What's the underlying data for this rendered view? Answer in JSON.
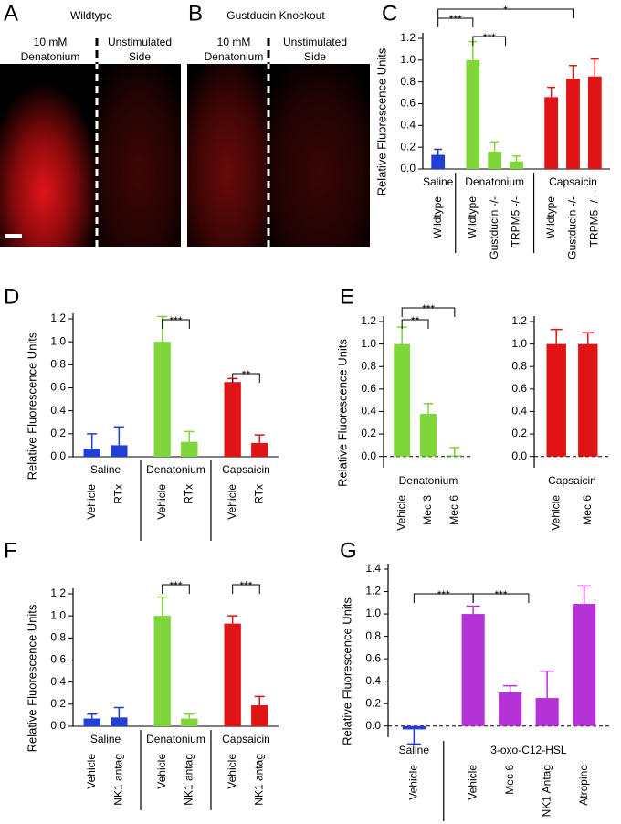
{
  "images": [
    {
      "panel": "A",
      "title": "Wildtype",
      "left_label": [
        "10 mM",
        "Denatonium"
      ],
      "right_label": [
        "Unstimulated",
        "Side"
      ]
    },
    {
      "panel": "B",
      "title": "Gustducin Knockout",
      "left_label": [
        "10 mM",
        "Denatonium"
      ],
      "right_label": [
        "Unstimulated",
        "Side"
      ]
    }
  ],
  "chart_data": [
    {
      "type": "bar",
      "panel": "C",
      "y_label": "Relative Fluorescence Units",
      "ylim": [
        0,
        1.2
      ],
      "yticks": [
        {
          "value": 0,
          "label": "0.0"
        },
        0.2,
        0.4,
        0.6,
        0.8,
        {
          "value": 1,
          "label": "1.0"
        },
        1.2
      ],
      "groups": [
        {
          "label": "Saline",
          "color": "#1f3fd6",
          "categories": [
            "Wildtype"
          ],
          "values": [
            0.13
          ],
          "errors": [
            0.05
          ]
        },
        {
          "label": "Denatonium",
          "color": "#7fd63a",
          "categories": [
            "Wildtype",
            "Gustducin -/-",
            "TRPM5 -/-"
          ],
          "values": [
            1.0,
            0.16,
            0.07
          ],
          "errors": [
            0.17,
            0.09,
            0.05
          ]
        },
        {
          "label": "Capsaicin",
          "color": "#e01414",
          "categories": [
            "Wildtype",
            "Gustducin -/-",
            "TRPM5 -/-"
          ],
          "values": [
            0.66,
            0.83,
            0.85
          ],
          "errors": [
            0.09,
            0.12,
            0.16
          ]
        }
      ],
      "annotations": [
        "***",
        "***",
        "*"
      ]
    },
    {
      "type": "bar",
      "panel": "D",
      "y_label": "Relative Fluorescence Units",
      "ylim": [
        0,
        1.2
      ],
      "yticks": [
        {
          "value": 0,
          "label": "0.0"
        },
        0.2,
        0.4,
        0.6,
        0.8,
        {
          "value": 1,
          "label": "1.0"
        },
        1.2
      ],
      "groups": [
        {
          "label": "Saline",
          "color": "#1f3fd6",
          "categories": [
            "Vehicle",
            "RTx"
          ],
          "values": [
            0.07,
            0.1
          ],
          "errors": [
            0.13,
            0.16
          ]
        },
        {
          "label": "Denatonium",
          "color": "#7fd63a",
          "categories": [
            "Vehicle",
            "RTx"
          ],
          "values": [
            1.0,
            0.13
          ],
          "errors": [
            0.22,
            0.09
          ]
        },
        {
          "label": "Capsaicin",
          "color": "#e01414",
          "categories": [
            "Vehicle",
            "RTx"
          ],
          "values": [
            0.65,
            0.12
          ],
          "errors": [
            0.03,
            0.07
          ]
        }
      ],
      "annotations": [
        "***",
        "**"
      ]
    },
    {
      "type": "bar",
      "panel": "E",
      "y_label": "Relative Fluorescence Units",
      "ylim": [
        -0.1,
        1.2
      ],
      "zero_line": true,
      "yticks": [
        {
          "value": 0,
          "label": "0.0"
        },
        0.2,
        0.4,
        0.6,
        0.8,
        {
          "value": 1,
          "label": "1.0"
        },
        1.2
      ],
      "groups": [
        {
          "label": "Denatonium",
          "color": "#7fd63a",
          "categories": [
            "Vehicle",
            "Mec 3",
            "Mec 6"
          ],
          "values": [
            1.0,
            0.38,
            0.01
          ],
          "errors": [
            0.15,
            0.09,
            0.07
          ]
        }
      ],
      "annotations": [
        "**",
        "***"
      ]
    },
    {
      "type": "bar",
      "ylim": [
        -0.1,
        1.2
      ],
      "zero_line": true,
      "yticks": [
        {
          "value": 0,
          "label": "0.0"
        },
        0.2,
        0.4,
        0.6,
        0.8,
        {
          "value": 1,
          "label": "1.0"
        },
        1.2
      ],
      "groups": [
        {
          "label": "Capsaicin",
          "color": "#e01414",
          "categories": [
            "Vehicle",
            "Mec 6"
          ],
          "values": [
            1.0,
            1.0
          ],
          "errors": [
            0.13,
            0.1
          ]
        }
      ]
    },
    {
      "type": "bar",
      "panel": "F",
      "y_label": "Relative Fluorescence Units",
      "ylim": [
        0,
        1.2
      ],
      "yticks": [
        {
          "value": 0,
          "label": "0.0"
        },
        0.2,
        0.4,
        0.6,
        0.8,
        {
          "value": 1,
          "label": "1.0"
        },
        1.2
      ],
      "groups": [
        {
          "label": "Saline",
          "color": "#1f3fd6",
          "categories": [
            "Vehicle",
            "NK1 antag"
          ],
          "values": [
            0.07,
            0.08
          ],
          "errors": [
            0.04,
            0.09
          ]
        },
        {
          "label": "Denatonium",
          "color": "#7fd63a",
          "categories": [
            "Vehicle",
            "NK1 antag"
          ],
          "values": [
            1.0,
            0.07
          ],
          "errors": [
            0.17,
            0.04
          ]
        },
        {
          "label": "Capsaicin",
          "color": "#e01414",
          "categories": [
            "Vehicle",
            "NK1 antag"
          ],
          "values": [
            0.93,
            0.19
          ],
          "errors": [
            0.07,
            0.08
          ]
        }
      ],
      "annotations": [
        "***",
        "***"
      ]
    },
    {
      "type": "bar",
      "panel": "G",
      "y_label": "Relative Fluorescence Units",
      "ylim": [
        -0.1,
        1.4
      ],
      "zero_line": true,
      "yticks": [
        {
          "value": 0,
          "label": "0.0"
        },
        0.2,
        0.4,
        0.6,
        0.8,
        {
          "value": 1,
          "label": "1.0"
        },
        1.2,
        1.4
      ],
      "groups": [
        {
          "label": "Saline",
          "color": "#1f3fd6",
          "categories": [
            "Vehicle"
          ],
          "values": [
            -0.03
          ],
          "errors": [
            0.13
          ]
        },
        {
          "label": "3-oxo-C12-HSL",
          "color": "#b532d6",
          "categories": [
            "Vehicle",
            "Mec 6",
            "NK1 Antag",
            "Atropine"
          ],
          "values": [
            1.0,
            0.3,
            0.25,
            1.09
          ],
          "errors": [
            0.07,
            0.06,
            0.24,
            0.16
          ]
        }
      ],
      "annotations": [
        "***",
        "***"
      ]
    }
  ]
}
